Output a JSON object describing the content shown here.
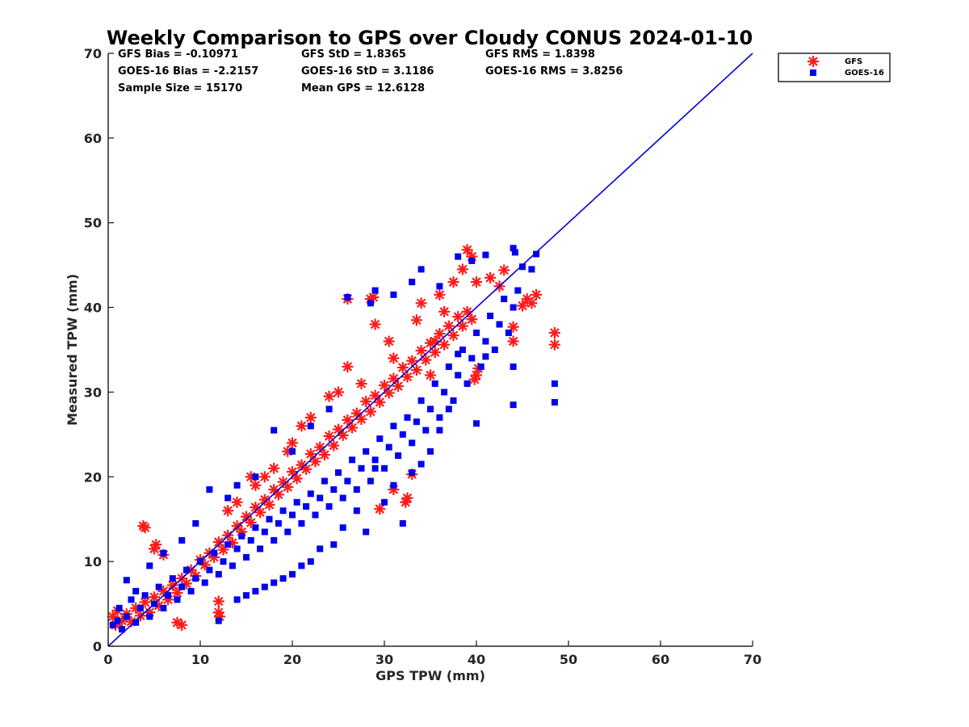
{
  "chart_data": {
    "type": "scatter",
    "title": "Weekly Comparison to GPS over Cloudy CONUS 2024-01-10",
    "xlabel": "GPS TPW (mm)",
    "ylabel": "Measured TPW (mm)",
    "xlim": [
      0,
      70
    ],
    "ylim": [
      0,
      70
    ],
    "xticks": [
      "0",
      "10",
      "20",
      "30",
      "40",
      "50",
      "60",
      "70"
    ],
    "yticks": [
      "0",
      "10",
      "20",
      "30",
      "40",
      "50",
      "60",
      "70"
    ],
    "grid": false,
    "legend_placement": "outside-top-right",
    "reference_line": {
      "x": [
        0,
        70
      ],
      "y": [
        0,
        70
      ],
      "color": "#0000d8"
    },
    "stats": [
      [
        "GFS Bias = -0.10971",
        "GFS StD = 1.8365",
        "GFS RMS = 1.8398"
      ],
      [
        "GOES-16 Bias = -2.2157",
        "GOES-16 StD = 3.1186",
        "GOES-16 RMS = 3.8256"
      ],
      [
        "Sample Size = 15170",
        "Mean GPS = 12.6128",
        ""
      ]
    ],
    "series": [
      {
        "name": "GFS",
        "marker": "asterisk",
        "color": "#ff1a1a",
        "points": [
          [
            0.5,
            3.5
          ],
          [
            0.8,
            2.5
          ],
          [
            1,
            4.2
          ],
          [
            1.5,
            3
          ],
          [
            2,
            3.8
          ],
          [
            2.5,
            2.9
          ],
          [
            3,
            4.5
          ],
          [
            3.5,
            3.6
          ],
          [
            4,
            5.2
          ],
          [
            4.5,
            4
          ],
          [
            5,
            5.8
          ],
          [
            5.5,
            4.8
          ],
          [
            6,
            6.5
          ],
          [
            6.5,
            5.5
          ],
          [
            7,
            7.2
          ],
          [
            7.5,
            6.3
          ],
          [
            8,
            8
          ],
          [
            8.5,
            7.4
          ],
          [
            9,
            9
          ],
          [
            9.5,
            8.3
          ],
          [
            10,
            10.2
          ],
          [
            10.5,
            9.6
          ],
          [
            11,
            11
          ],
          [
            11.5,
            10.5
          ],
          [
            12,
            12.3
          ],
          [
            12.5,
            11.4
          ],
          [
            13,
            13.1
          ],
          [
            13.5,
            12.2
          ],
          [
            14,
            14.2
          ],
          [
            14.5,
            13.5
          ],
          [
            15,
            15.3
          ],
          [
            15.5,
            14.6
          ],
          [
            16,
            16.4
          ],
          [
            16.5,
            15.8
          ],
          [
            17,
            17.3
          ],
          [
            17.5,
            16.7
          ],
          [
            18,
            18.5
          ],
          [
            18.5,
            17.9
          ],
          [
            19,
            19.4
          ],
          [
            19.5,
            18.8
          ],
          [
            20,
            20.6
          ],
          [
            20.5,
            19.8
          ],
          [
            21,
            21.4
          ],
          [
            21.5,
            20.9
          ],
          [
            22,
            22.7
          ],
          [
            22.5,
            21.8
          ],
          [
            23,
            23.5
          ],
          [
            23.5,
            22.6
          ],
          [
            24,
            24.8
          ],
          [
            24.5,
            23.7
          ],
          [
            25,
            25.6
          ],
          [
            25.5,
            24.9
          ],
          [
            26,
            26.7
          ],
          [
            26.5,
            25.8
          ],
          [
            27,
            27.5
          ],
          [
            27.5,
            26.8
          ],
          [
            28,
            28.9
          ],
          [
            28.5,
            27.7
          ],
          [
            29,
            29.6
          ],
          [
            29.5,
            28.8
          ],
          [
            30,
            30.8
          ],
          [
            30.5,
            29.9
          ],
          [
            31,
            31.6
          ],
          [
            31.5,
            30.7
          ],
          [
            32,
            32.9
          ],
          [
            32.5,
            31.8
          ],
          [
            33,
            33.7
          ],
          [
            33.5,
            32.6
          ],
          [
            34,
            34.9
          ],
          [
            34.5,
            33.8
          ],
          [
            35,
            35.8
          ],
          [
            35.5,
            34.7
          ],
          [
            36,
            36.9
          ],
          [
            36.5,
            35.6
          ],
          [
            37,
            37.8
          ],
          [
            37.5,
            36.7
          ],
          [
            38,
            38.9
          ],
          [
            38.5,
            37.8
          ],
          [
            39,
            39.5
          ],
          [
            39.5,
            38.6
          ],
          [
            3.8,
            14.2
          ],
          [
            4,
            14
          ],
          [
            5,
            11.5
          ],
          [
            5.2,
            12
          ],
          [
            6,
            10.8
          ],
          [
            12,
            5.3
          ],
          [
            12,
            4
          ],
          [
            12.1,
            3.5
          ],
          [
            8,
            2.5
          ],
          [
            7.5,
            2.8
          ],
          [
            26,
            33
          ],
          [
            26,
            41
          ],
          [
            28.5,
            41
          ],
          [
            28.8,
            41.2
          ],
          [
            29,
            38
          ],
          [
            29.5,
            16.2
          ],
          [
            31,
            18.5
          ],
          [
            32.5,
            17.5
          ],
          [
            32.3,
            17
          ],
          [
            33,
            20.3
          ],
          [
            39,
            46.8
          ],
          [
            39.5,
            46
          ],
          [
            38.5,
            44.5
          ],
          [
            40,
            43
          ],
          [
            41.5,
            43.5
          ],
          [
            43,
            44.4
          ],
          [
            42.5,
            42.5
          ],
          [
            44,
            37.7
          ],
          [
            44,
            36
          ],
          [
            45,
            40.2
          ],
          [
            45.5,
            41
          ],
          [
            46,
            40.5
          ],
          [
            46.5,
            41.5
          ],
          [
            48.5,
            37
          ],
          [
            48.5,
            35.6
          ],
          [
            40,
            32
          ],
          [
            39.8,
            31.5
          ],
          [
            40.2,
            32.8
          ],
          [
            35,
            32
          ],
          [
            35.5,
            36
          ],
          [
            33.5,
            38.5
          ],
          [
            34,
            40.5
          ],
          [
            36,
            41.5
          ],
          [
            37.5,
            43
          ],
          [
            36.5,
            39.5
          ],
          [
            30.5,
            36
          ],
          [
            31,
            34
          ],
          [
            27.5,
            31
          ],
          [
            25,
            30
          ],
          [
            24,
            29.5
          ],
          [
            22,
            27
          ],
          [
            21,
            26
          ],
          [
            20,
            24
          ],
          [
            19.5,
            23
          ],
          [
            18,
            21
          ],
          [
            17,
            20
          ],
          [
            15.5,
            20
          ],
          [
            16,
            19
          ],
          [
            14,
            17
          ],
          [
            13,
            16
          ]
        ]
      },
      {
        "name": "GOES-16",
        "marker": "square",
        "color": "#0000f0",
        "points": [
          [
            0.5,
            2.5
          ],
          [
            1,
            3
          ],
          [
            1.2,
            4.5
          ],
          [
            1.5,
            2
          ],
          [
            2,
            3.5
          ],
          [
            2.5,
            5.5
          ],
          [
            3,
            2.8
          ],
          [
            3.5,
            4.5
          ],
          [
            4,
            6
          ],
          [
            4.5,
            3.5
          ],
          [
            5,
            5
          ],
          [
            5.5,
            7
          ],
          [
            6,
            4.5
          ],
          [
            6.5,
            6
          ],
          [
            7,
            8
          ],
          [
            7.5,
            5.5
          ],
          [
            8,
            7
          ],
          [
            8.5,
            9
          ],
          [
            9,
            6.5
          ],
          [
            9.5,
            8
          ],
          [
            10,
            10
          ],
          [
            10.5,
            7.5
          ],
          [
            11,
            9
          ],
          [
            11.5,
            11
          ],
          [
            12,
            8.5
          ],
          [
            12.5,
            10
          ],
          [
            13,
            12
          ],
          [
            13.5,
            9.5
          ],
          [
            14,
            11.5
          ],
          [
            14.5,
            13
          ],
          [
            15,
            10.5
          ],
          [
            15.5,
            12.5
          ],
          [
            16,
            14
          ],
          [
            16.5,
            11.5
          ],
          [
            17,
            13.5
          ],
          [
            17.5,
            15
          ],
          [
            18,
            12.5
          ],
          [
            18.5,
            14.5
          ],
          [
            19,
            16
          ],
          [
            19.5,
            13.5
          ],
          [
            20,
            15.5
          ],
          [
            20.5,
            17
          ],
          [
            21,
            14.5
          ],
          [
            21.5,
            16.5
          ],
          [
            22,
            18
          ],
          [
            22.5,
            15.5
          ],
          [
            23,
            17.5
          ],
          [
            23.5,
            19.5
          ],
          [
            24,
            16.5
          ],
          [
            24.5,
            18.5
          ],
          [
            25,
            20.5
          ],
          [
            25.5,
            17.5
          ],
          [
            26,
            19.5
          ],
          [
            26.5,
            22
          ],
          [
            27,
            18.5
          ],
          [
            27.5,
            21
          ],
          [
            28,
            23
          ],
          [
            28.5,
            19.5
          ],
          [
            29,
            22
          ],
          [
            29.5,
            24.5
          ],
          [
            30,
            21
          ],
          [
            30.5,
            23.5
          ],
          [
            31,
            26
          ],
          [
            31.5,
            22.5
          ],
          [
            32,
            25
          ],
          [
            32.5,
            27
          ],
          [
            33,
            24
          ],
          [
            33.5,
            26.5
          ],
          [
            34,
            29
          ],
          [
            34.5,
            25.5
          ],
          [
            35,
            28
          ],
          [
            35.5,
            31
          ],
          [
            36,
            27
          ],
          [
            36.5,
            30
          ],
          [
            37,
            33
          ],
          [
            37.5,
            29
          ],
          [
            38,
            32
          ],
          [
            38.5,
            35
          ],
          [
            39,
            31
          ],
          [
            39.5,
            34
          ],
          [
            40,
            37
          ],
          [
            40.5,
            33
          ],
          [
            41,
            36
          ],
          [
            41.5,
            39
          ],
          [
            42,
            35
          ],
          [
            42.5,
            38
          ],
          [
            43,
            41
          ],
          [
            43.5,
            37
          ],
          [
            44,
            40
          ],
          [
            44.5,
            42
          ],
          [
            3,
            6.5
          ],
          [
            2,
            7.8
          ],
          [
            4.5,
            9.5
          ],
          [
            6,
            11
          ],
          [
            8,
            12.5
          ],
          [
            9.5,
            14.5
          ],
          [
            11,
            18.5
          ],
          [
            13,
            17.5
          ],
          [
            14,
            19
          ],
          [
            16,
            20
          ],
          [
            18,
            25.5
          ],
          [
            20,
            23
          ],
          [
            22,
            26
          ],
          [
            24,
            28
          ],
          [
            26,
            41.2
          ],
          [
            28.5,
            40.5
          ],
          [
            29,
            42
          ],
          [
            31,
            41.5
          ],
          [
            33,
            43
          ],
          [
            34,
            44.5
          ],
          [
            36,
            42.5
          ],
          [
            38,
            46
          ],
          [
            39.5,
            45.5
          ],
          [
            41,
            46.2
          ],
          [
            44,
            47
          ],
          [
            44.2,
            46.5
          ],
          [
            45,
            44.8
          ],
          [
            46,
            44.5
          ],
          [
            46.5,
            46.3
          ],
          [
            44,
            28.5
          ],
          [
            48.5,
            31
          ],
          [
            48.5,
            28.8
          ],
          [
            44,
            33
          ],
          [
            40,
            26.3
          ],
          [
            41,
            34.2
          ],
          [
            38,
            34.5
          ],
          [
            37,
            28
          ],
          [
            36,
            25.5
          ],
          [
            35,
            23
          ],
          [
            34,
            21.5
          ],
          [
            33,
            20.5
          ],
          [
            32,
            14.5
          ],
          [
            31,
            19
          ],
          [
            30,
            17
          ],
          [
            29,
            21
          ],
          [
            28,
            13.5
          ],
          [
            27,
            16
          ],
          [
            25.5,
            14
          ],
          [
            24.5,
            12
          ],
          [
            23,
            11.5
          ],
          [
            22,
            10
          ],
          [
            21,
            9.5
          ],
          [
            20,
            8.5
          ],
          [
            19,
            8
          ],
          [
            18,
            7.5
          ],
          [
            17,
            7
          ],
          [
            16,
            6.5
          ],
          [
            15,
            6
          ],
          [
            14,
            5.5
          ],
          [
            12,
            3
          ]
        ]
      }
    ]
  }
}
